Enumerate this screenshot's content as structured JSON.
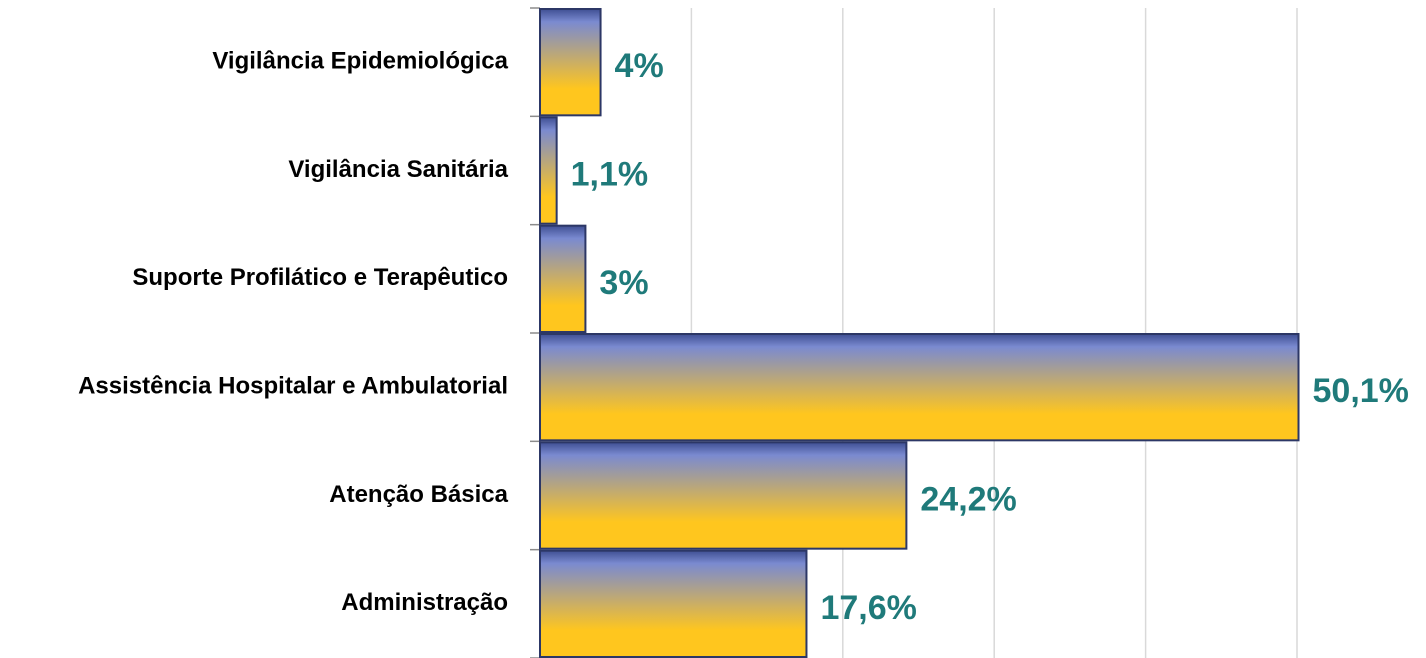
{
  "chart_data": {
    "type": "bar",
    "orientation": "horizontal",
    "categories": [
      "Vigilância Epidemiológica",
      "Vigilância Sanitária",
      "Suporte Profilático e Terapêutico",
      "Assistência Hospitalar e Ambulatorial",
      "Atenção Básica",
      "Administração"
    ],
    "values": [
      4,
      1.1,
      3,
      50.1,
      24.2,
      17.6
    ],
    "value_labels": [
      "4%",
      "1,1%",
      "3%",
      "50,1%",
      "24,2%",
      "17,6%"
    ],
    "colors": [
      "#3f4f93",
      "#ffc61e"
    ],
    "label_color": "#1f7a7a",
    "xlim": [
      0,
      50
    ],
    "xticks": [
      0,
      10,
      20,
      30,
      40,
      50
    ],
    "grid": true
  }
}
